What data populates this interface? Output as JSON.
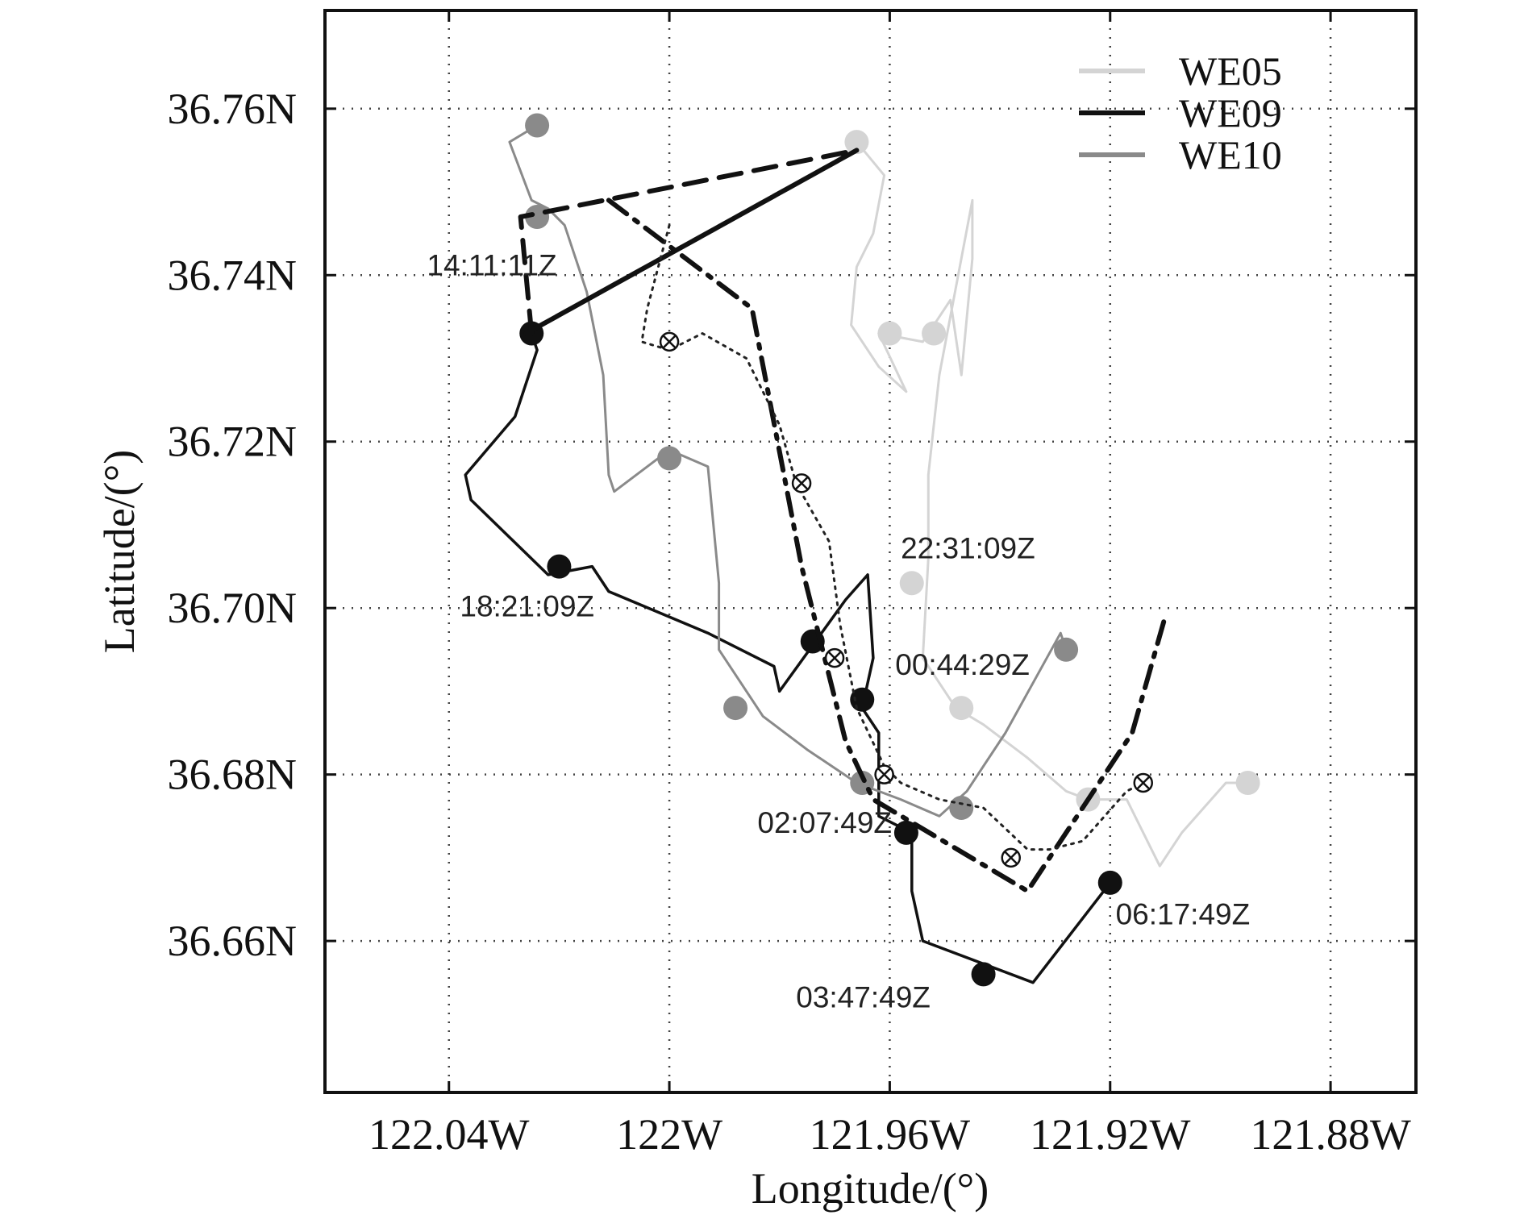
{
  "chart_data": {
    "type": "line",
    "xlabel": "Longitude/(°)",
    "ylabel": "Latitude/(°)",
    "xlim": [
      -122.0625,
      -121.8645
    ],
    "ylim": [
      36.6418,
      36.7718
    ],
    "x_ticks": [
      {
        "value": -122.04,
        "label": "122.04W"
      },
      {
        "value": -122.0,
        "label": "122W"
      },
      {
        "value": -121.96,
        "label": "121.96W"
      },
      {
        "value": -121.92,
        "label": "121.92W"
      },
      {
        "value": -121.88,
        "label": "121.88W"
      }
    ],
    "y_ticks": [
      {
        "value": 36.66,
        "label": "36.66N"
      },
      {
        "value": 36.68,
        "label": "36.68N"
      },
      {
        "value": 36.7,
        "label": "36.70N"
      },
      {
        "value": 36.72,
        "label": "36.72N"
      },
      {
        "value": 36.74,
        "label": "36.74N"
      },
      {
        "value": 36.76,
        "label": "36.76N"
      }
    ],
    "grid": true,
    "legend_position": "top-right",
    "series": [
      {
        "name": "WE05",
        "color": "#d4d4d4",
        "path": [
          [
            -121.966,
            36.756
          ],
          [
            -121.961,
            36.752
          ],
          [
            -121.963,
            36.745
          ],
          [
            -121.966,
            36.741
          ],
          [
            -121.967,
            36.734
          ],
          [
            -121.962,
            36.729
          ],
          [
            -121.957,
            36.726
          ],
          [
            -121.962,
            36.733
          ],
          [
            -121.954,
            36.732
          ],
          [
            -121.949,
            36.737
          ],
          [
            -121.947,
            36.728
          ],
          [
            -121.945,
            36.742
          ],
          [
            -121.945,
            36.749
          ],
          [
            -121.951,
            36.728
          ],
          [
            -121.953,
            36.716
          ],
          [
            -121.953,
            36.706
          ],
          [
            -121.954,
            36.694
          ],
          [
            -121.948,
            36.688
          ],
          [
            -121.943,
            36.686
          ],
          [
            -121.935,
            36.682
          ],
          [
            -121.928,
            36.678
          ],
          [
            -121.924,
            36.677
          ],
          [
            -121.917,
            36.677
          ],
          [
            -121.911,
            36.669
          ],
          [
            -121.907,
            36.673
          ],
          [
            -121.899,
            36.679
          ],
          [
            -121.895,
            36.679
          ]
        ],
        "markers": [
          [
            -121.966,
            36.756
          ],
          [
            -121.96,
            36.733
          ],
          [
            -121.952,
            36.733
          ],
          [
            -121.956,
            36.703
          ],
          [
            -121.947,
            36.688
          ],
          [
            -121.924,
            36.677
          ],
          [
            -121.895,
            36.679
          ]
        ]
      },
      {
        "name": "WE09",
        "color": "#111111",
        "path": [
          [
            -122.025,
            36.733
          ],
          [
            -122.024,
            36.731
          ],
          [
            -122.028,
            36.723
          ],
          [
            -122.037,
            36.716
          ],
          [
            -122.036,
            36.713
          ],
          [
            -122.022,
            36.704
          ],
          [
            -122.014,
            36.705
          ],
          [
            -122.011,
            36.702
          ],
          [
            -121.993,
            36.697
          ],
          [
            -121.981,
            36.693
          ],
          [
            -121.98,
            36.69
          ],
          [
            -121.968,
            36.701
          ],
          [
            -121.964,
            36.704
          ],
          [
            -121.963,
            36.694
          ],
          [
            -121.965,
            36.688
          ],
          [
            -121.962,
            36.685
          ],
          [
            -121.962,
            36.675
          ],
          [
            -121.956,
            36.673
          ],
          [
            -121.956,
            36.666
          ],
          [
            -121.954,
            36.66
          ],
          [
            -121.946,
            36.658
          ],
          [
            -121.934,
            36.655
          ],
          [
            -121.92,
            36.667
          ]
        ],
        "markers": [
          [
            -122.025,
            36.733
          ],
          [
            -122.02,
            36.705
          ],
          [
            -121.974,
            36.696
          ],
          [
            -121.965,
            36.689
          ],
          [
            -121.957,
            36.673
          ],
          [
            -121.943,
            36.656
          ],
          [
            -121.92,
            36.667
          ]
        ]
      },
      {
        "name": "WE10",
        "color": "#8a8a8a",
        "path": [
          [
            -122.024,
            36.758
          ],
          [
            -122.029,
            36.756
          ],
          [
            -122.025,
            36.749
          ],
          [
            -122.022,
            36.748
          ],
          [
            -122.019,
            36.746
          ],
          [
            -122.015,
            36.738
          ],
          [
            -122.012,
            36.728
          ],
          [
            -122.011,
            36.716
          ],
          [
            -122.01,
            36.714
          ],
          [
            -122.0,
            36.719
          ],
          [
            -121.993,
            36.717
          ],
          [
            -121.991,
            36.703
          ],
          [
            -121.991,
            36.695
          ],
          [
            -121.983,
            36.687
          ],
          [
            -121.975,
            36.683
          ],
          [
            -121.966,
            36.679
          ],
          [
            -121.958,
            36.677
          ],
          [
            -121.951,
            36.675
          ],
          [
            -121.946,
            36.678
          ],
          [
            -121.939,
            36.685
          ],
          [
            -121.929,
            36.697
          ],
          [
            -121.928,
            36.695
          ]
        ],
        "markers": [
          [
            -122.024,
            36.758
          ],
          [
            -122.024,
            36.747
          ],
          [
            -122.0,
            36.718
          ],
          [
            -121.988,
            36.688
          ],
          [
            -121.965,
            36.679
          ],
          [
            -121.947,
            36.676
          ],
          [
            -121.928,
            36.695
          ]
        ]
      },
      {
        "name": "",
        "color": "#111111",
        "dash": "dashed",
        "path": [
          [
            -122.025,
            36.733
          ],
          [
            -122.027,
            36.747
          ],
          [
            -121.966,
            36.755
          ],
          [
            -122.026,
            36.733
          ],
          [
            -121.966,
            36.755
          ]
        ]
      },
      {
        "name": "",
        "color": "#111111",
        "dash": "dashdot",
        "path": [
          [
            -122.011,
            36.749
          ],
          [
            -121.985,
            36.736
          ],
          [
            -121.976,
            36.705
          ],
          [
            -121.968,
            36.684
          ],
          [
            -121.963,
            36.677
          ],
          [
            -121.935,
            36.666
          ],
          [
            -121.916,
            36.685
          ],
          [
            -121.91,
            36.699
          ]
        ]
      },
      {
        "name": "",
        "color": "#222222",
        "dash": "dotted",
        "path": [
          [
            -122.0,
            36.746
          ],
          [
            -122.004,
            36.736
          ],
          [
            -122.005,
            36.732
          ],
          [
            -122.0,
            36.731
          ],
          [
            -121.994,
            36.733
          ],
          [
            -121.986,
            36.73
          ],
          [
            -121.98,
            36.722
          ],
          [
            -121.977,
            36.715
          ],
          [
            -121.971,
            36.708
          ],
          [
            -121.969,
            36.698
          ],
          [
            -121.966,
            36.688
          ],
          [
            -121.961,
            36.681
          ],
          [
            -121.958,
            36.679
          ],
          [
            -121.951,
            36.677
          ],
          [
            -121.943,
            36.676
          ],
          [
            -121.935,
            36.671
          ],
          [
            -121.931,
            36.671
          ],
          [
            -121.925,
            36.672
          ],
          [
            -121.917,
            36.678
          ],
          [
            -121.914,
            36.679
          ]
        ],
        "markers": [
          [
            -122.0,
            36.732
          ],
          [
            -121.976,
            36.715
          ],
          [
            -121.97,
            36.694
          ],
          [
            -121.961,
            36.68
          ],
          [
            -121.938,
            36.67
          ],
          [
            -121.914,
            36.679
          ]
        ]
      }
    ],
    "annotations": [
      {
        "text": "14:11:11Z",
        "x": -122.044,
        "y": 36.74
      },
      {
        "text": "18:21:09Z",
        "x": -122.038,
        "y": 36.699
      },
      {
        "text": "22:31:09Z",
        "x": -121.958,
        "y": 36.706
      },
      {
        "text": "00:44:29Z",
        "x": -121.959,
        "y": 36.692
      },
      {
        "text": "02:07:49Z",
        "x": -121.984,
        "y": 36.673
      },
      {
        "text": "06:17:49Z",
        "x": -121.919,
        "y": 36.662
      },
      {
        "text": "03:47:49Z",
        "x": -121.977,
        "y": 36.652
      }
    ]
  }
}
